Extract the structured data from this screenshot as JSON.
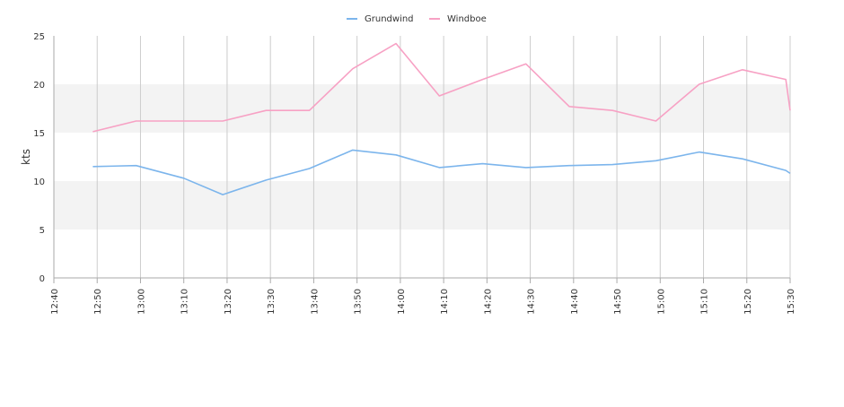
{
  "chart_data": {
    "type": "line",
    "ylabel": "kts",
    "ylim": [
      0,
      25
    ],
    "y_ticks": [
      "0",
      "5",
      "10",
      "15",
      "20",
      "25"
    ],
    "x_ticks": [
      "12:40",
      "12:50",
      "13:00",
      "13:10",
      "13:20",
      "13:30",
      "13:40",
      "13:50",
      "14:00",
      "14:10",
      "14:20",
      "14:30",
      "14:40",
      "14:50",
      "15:00",
      "15:10",
      "15:20",
      "15:30"
    ],
    "x_range": [
      "12:40",
      "15:30"
    ],
    "grid": "vertical lines at each x tick; alternating shaded horizontal bands 5-10 and 15-20",
    "legend": {
      "position": "top-center"
    },
    "series": [
      {
        "name": "Grundwind",
        "color": "#7cb5ec",
        "points": [
          {
            "x": "12:49",
            "y": 11.5
          },
          {
            "x": "12:59",
            "y": 11.6
          },
          {
            "x": "13:10",
            "y": 10.3
          },
          {
            "x": "13:19",
            "y": 8.6
          },
          {
            "x": "13:29",
            "y": 10.1
          },
          {
            "x": "13:39",
            "y": 11.3
          },
          {
            "x": "13:49",
            "y": 13.2
          },
          {
            "x": "13:59",
            "y": 12.7
          },
          {
            "x": "14:09",
            "y": 11.4
          },
          {
            "x": "14:19",
            "y": 11.8
          },
          {
            "x": "14:29",
            "y": 11.4
          },
          {
            "x": "14:39",
            "y": 11.6
          },
          {
            "x": "14:49",
            "y": 11.7
          },
          {
            "x": "14:59",
            "y": 12.1
          },
          {
            "x": "15:09",
            "y": 13.0
          },
          {
            "x": "15:19",
            "y": 12.3
          },
          {
            "x": "15:29",
            "y": 11.1
          },
          {
            "x": "15:30",
            "y": 10.8
          }
        ]
      },
      {
        "name": "Windboe",
        "color": "#f7a1c4",
        "points": [
          {
            "x": "12:49",
            "y": 15.1
          },
          {
            "x": "12:59",
            "y": 16.2
          },
          {
            "x": "13:10",
            "y": 16.2
          },
          {
            "x": "13:19",
            "y": 16.2
          },
          {
            "x": "13:29",
            "y": 17.3
          },
          {
            "x": "13:39",
            "y": 17.3
          },
          {
            "x": "13:49",
            "y": 21.6
          },
          {
            "x": "13:59",
            "y": 24.2
          },
          {
            "x": "14:09",
            "y": 18.8
          },
          {
            "x": "14:19",
            "y": 20.5
          },
          {
            "x": "14:29",
            "y": 22.1
          },
          {
            "x": "14:39",
            "y": 17.7
          },
          {
            "x": "14:49",
            "y": 17.3
          },
          {
            "x": "14:59",
            "y": 16.2
          },
          {
            "x": "15:09",
            "y": 20.0
          },
          {
            "x": "15:19",
            "y": 21.5
          },
          {
            "x": "15:29",
            "y": 20.5
          },
          {
            "x": "15:30",
            "y": 17.3
          }
        ]
      }
    ]
  }
}
